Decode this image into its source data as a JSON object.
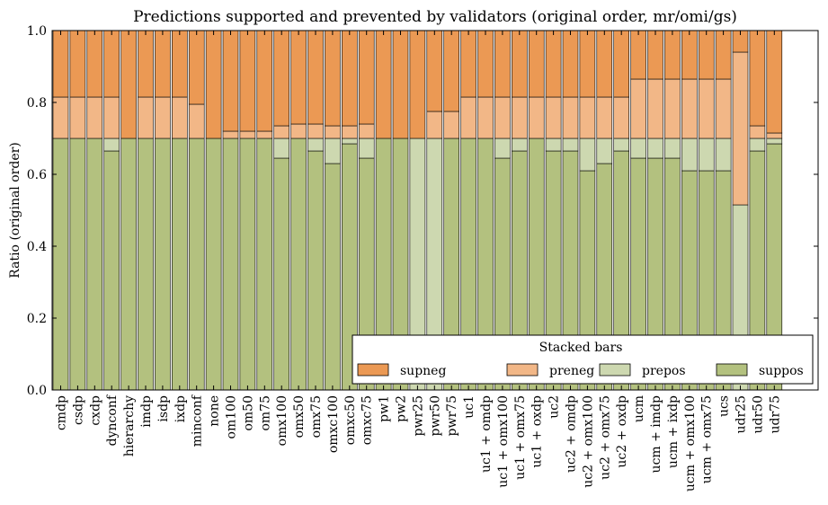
{
  "chart_data": {
    "type": "bar",
    "stacked": true,
    "title": "Predictions supported and prevented by validators (original order, mr/omi/gs)",
    "xlabel": "",
    "ylabel": "Ratio (original order)",
    "ylim": [
      0,
      1.0
    ],
    "yticks": [
      "0.0",
      "0.2",
      "0.4",
      "0.6",
      "0.8",
      "1.0"
    ],
    "grid": false,
    "legend": {
      "title": "Stacked bars",
      "placement": "lower-right",
      "entries": [
        "supneg",
        "preneg",
        "prepos",
        "suppos"
      ]
    },
    "categories": [
      "cmdp",
      "csdp",
      "cxdp",
      "dynconf",
      "hierarchy",
      "imdp",
      "isdp",
      "ixdp",
      "minconf",
      "none",
      "om100",
      "om50",
      "om75",
      "omx100",
      "omx50",
      "omx75",
      "omxc100",
      "omxc50",
      "omxc75",
      "pw1",
      "pw2",
      "pwr25",
      "pwr50",
      "pwr75",
      "uc1",
      "uc1 + omdp",
      "uc1 + omx100",
      "uc1 + omx75",
      "uc1 + oxdp",
      "uc2",
      "uc2 + omdp",
      "uc2 + omx100",
      "uc2 + omx75",
      "uc2 + oxdp",
      "ucm",
      "ucm + imdp",
      "ucm + ixdp",
      "ucm + omx100",
      "ucm + omx75",
      "ucs",
      "udr25",
      "udr50",
      "udr75"
    ],
    "series": [
      {
        "name": "suppos",
        "color": "#b3c17f",
        "values": [
          0.7,
          0.7,
          0.7,
          0.665,
          0.7,
          0.7,
          0.7,
          0.7,
          0.7,
          0.7,
          0.7,
          0.7,
          0.7,
          0.645,
          0.7,
          0.665,
          0.63,
          0.685,
          0.645,
          0.7,
          0.7,
          0.0,
          0.0,
          0.7,
          0.7,
          0.7,
          0.645,
          0.665,
          0.7,
          0.665,
          0.665,
          0.61,
          0.63,
          0.665,
          0.645,
          0.645,
          0.645,
          0.61,
          0.61,
          0.61,
          0.0,
          0.665,
          0.685
        ]
      },
      {
        "name": "prepos",
        "color": "#cdd8b0",
        "values": [
          0.0,
          0.0,
          0.0,
          0.035,
          0.0,
          0.0,
          0.0,
          0.0,
          0.0,
          0.0,
          0.0,
          0.0,
          0.0,
          0.055,
          0.0,
          0.035,
          0.07,
          0.015,
          0.055,
          0.0,
          0.0,
          0.7,
          0.7,
          0.0,
          0.0,
          0.0,
          0.055,
          0.035,
          0.0,
          0.035,
          0.035,
          0.09,
          0.07,
          0.035,
          0.055,
          0.055,
          0.055,
          0.09,
          0.09,
          0.09,
          0.515,
          0.035,
          0.015
        ]
      },
      {
        "name": "preneg",
        "color": "#f2b787",
        "values": [
          0.115,
          0.115,
          0.115,
          0.115,
          0.0,
          0.115,
          0.115,
          0.115,
          0.095,
          0.0,
          0.02,
          0.02,
          0.02,
          0.035,
          0.04,
          0.04,
          0.035,
          0.035,
          0.04,
          0.0,
          0.0,
          0.0,
          0.075,
          0.075,
          0.115,
          0.115,
          0.115,
          0.115,
          0.115,
          0.115,
          0.115,
          0.115,
          0.115,
          0.115,
          0.165,
          0.165,
          0.165,
          0.165,
          0.165,
          0.165,
          0.425,
          0.035,
          0.015
        ]
      },
      {
        "name": "supneg",
        "color": "#eb9954",
        "values": [
          0.185,
          0.185,
          0.185,
          0.185,
          0.3,
          0.185,
          0.185,
          0.185,
          0.205,
          0.3,
          0.28,
          0.28,
          0.28,
          0.265,
          0.26,
          0.26,
          0.265,
          0.265,
          0.26,
          0.3,
          0.3,
          0.3,
          0.225,
          0.225,
          0.185,
          0.185,
          0.185,
          0.185,
          0.185,
          0.185,
          0.185,
          0.185,
          0.185,
          0.185,
          0.135,
          0.135,
          0.135,
          0.135,
          0.135,
          0.135,
          0.06,
          0.265,
          0.285
        ]
      }
    ]
  }
}
